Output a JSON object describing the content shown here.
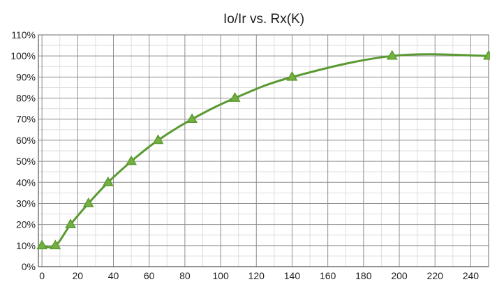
{
  "chart_data": {
    "type": "line",
    "title": "Io/Ir vs. Rx(K)",
    "xlabel": "",
    "ylabel": "",
    "xlim": [
      -2,
      250
    ],
    "ylim": [
      0,
      110
    ],
    "x_ticks": [
      0,
      20,
      40,
      60,
      80,
      100,
      120,
      140,
      160,
      180,
      200,
      220,
      240
    ],
    "y_ticks": [
      0,
      10,
      20,
      30,
      40,
      50,
      60,
      70,
      80,
      90,
      100,
      110
    ],
    "y_tick_labels": [
      "0%",
      "10%",
      "20%",
      "30%",
      "40%",
      "50%",
      "60%",
      "70%",
      "80%",
      "90%",
      "100%",
      "110%"
    ],
    "grid": true,
    "minor_grid": true,
    "legend": "none",
    "series": [
      {
        "color": "#5a9a32",
        "marker": "triangle",
        "marker_color": "#76b041",
        "x": [
          0,
          7.5,
          16,
          26,
          37,
          50,
          65,
          84,
          108,
          140,
          196,
          250
        ],
        "y": [
          10,
          10,
          20,
          30,
          40,
          50,
          60,
          70,
          80,
          90,
          100,
          100
        ]
      }
    ]
  }
}
